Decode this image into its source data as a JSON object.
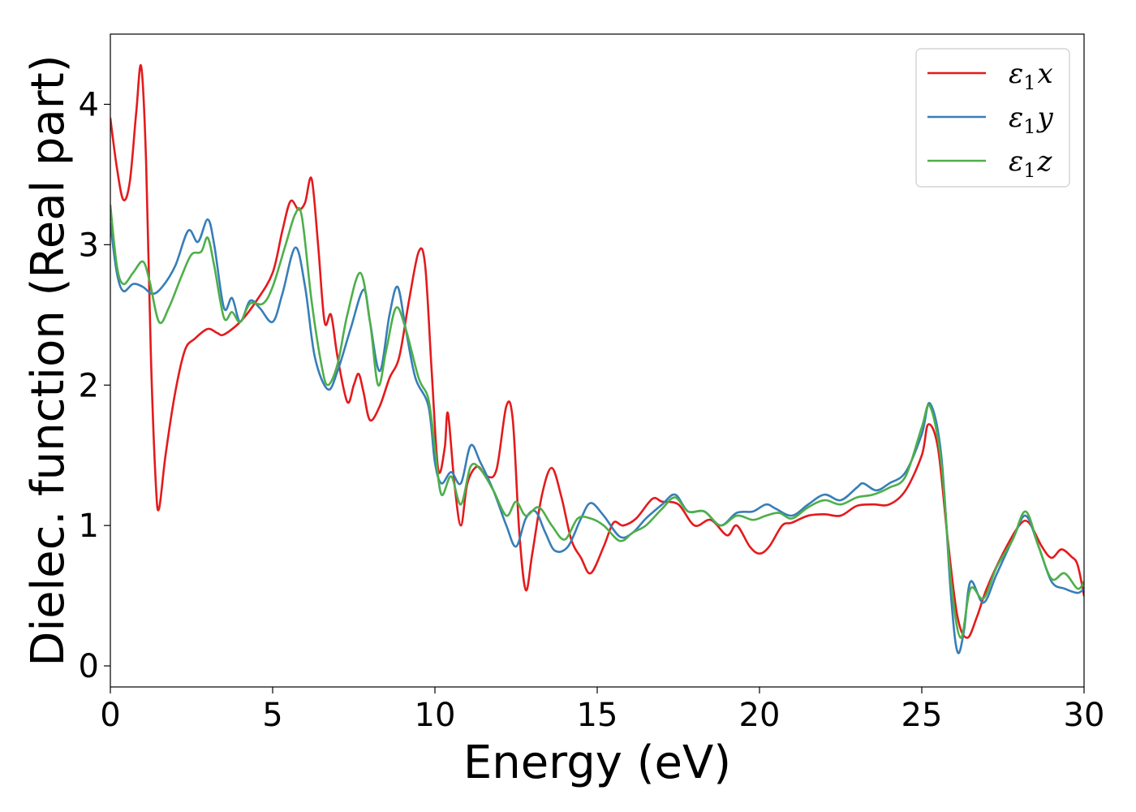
{
  "chart_data": {
    "type": "line",
    "xlabel": "Energy (eV)",
    "ylabel": "Dielec. function (Real part)",
    "xlim": [
      0,
      30
    ],
    "ylim": [
      -0.15,
      4.5
    ],
    "xticks": [
      0,
      5,
      10,
      15,
      20,
      25,
      30
    ],
    "yticks": [
      0,
      1,
      2,
      3,
      4
    ],
    "legend_position": "top-right",
    "grid": false,
    "series": [
      {
        "name": "ε₁x",
        "legend_main": "ε",
        "legend_sub": "1",
        "legend_suffix": "x",
        "color": "#e41a1c",
        "points": [
          [
            0,
            3.9
          ],
          [
            0.2,
            3.55
          ],
          [
            0.4,
            3.32
          ],
          [
            0.6,
            3.45
          ],
          [
            0.8,
            3.95
          ],
          [
            0.95,
            4.27
          ],
          [
            1.1,
            3.6
          ],
          [
            1.25,
            2.2
          ],
          [
            1.4,
            1.3
          ],
          [
            1.5,
            1.12
          ],
          [
            1.7,
            1.5
          ],
          [
            2.0,
            1.95
          ],
          [
            2.3,
            2.25
          ],
          [
            2.6,
            2.33
          ],
          [
            3.0,
            2.4
          ],
          [
            3.3,
            2.37
          ],
          [
            3.5,
            2.36
          ],
          [
            4.0,
            2.45
          ],
          [
            4.5,
            2.6
          ],
          [
            5.0,
            2.8
          ],
          [
            5.3,
            3.1
          ],
          [
            5.55,
            3.31
          ],
          [
            5.8,
            3.25
          ],
          [
            6.0,
            3.3
          ],
          [
            6.2,
            3.47
          ],
          [
            6.4,
            3.0
          ],
          [
            6.6,
            2.45
          ],
          [
            6.8,
            2.5
          ],
          [
            7.0,
            2.2
          ],
          [
            7.3,
            1.88
          ],
          [
            7.5,
            2.0
          ],
          [
            7.65,
            2.08
          ],
          [
            7.8,
            1.95
          ],
          [
            8.0,
            1.75
          ],
          [
            8.3,
            1.85
          ],
          [
            8.6,
            2.05
          ],
          [
            8.9,
            2.2
          ],
          [
            9.2,
            2.6
          ],
          [
            9.5,
            2.95
          ],
          [
            9.7,
            2.85
          ],
          [
            9.9,
            2.1
          ],
          [
            10.1,
            1.4
          ],
          [
            10.3,
            1.55
          ],
          [
            10.4,
            1.8
          ],
          [
            10.6,
            1.3
          ],
          [
            10.8,
            1.0
          ],
          [
            11.0,
            1.3
          ],
          [
            11.3,
            1.42
          ],
          [
            11.6,
            1.35
          ],
          [
            11.9,
            1.4
          ],
          [
            12.2,
            1.85
          ],
          [
            12.4,
            1.75
          ],
          [
            12.6,
            0.95
          ],
          [
            12.8,
            0.54
          ],
          [
            13.0,
            0.8
          ],
          [
            13.3,
            1.22
          ],
          [
            13.6,
            1.41
          ],
          [
            13.9,
            1.2
          ],
          [
            14.2,
            0.9
          ],
          [
            14.5,
            0.77
          ],
          [
            14.8,
            0.66
          ],
          [
            15.2,
            0.85
          ],
          [
            15.5,
            1.02
          ],
          [
            15.8,
            1.0
          ],
          [
            16.2,
            1.05
          ],
          [
            16.7,
            1.19
          ],
          [
            17.0,
            1.17
          ],
          [
            17.5,
            1.15
          ],
          [
            18.0,
            1.0
          ],
          [
            18.5,
            1.04
          ],
          [
            19.0,
            0.93
          ],
          [
            19.3,
            1.0
          ],
          [
            19.7,
            0.85
          ],
          [
            20.0,
            0.8
          ],
          [
            20.3,
            0.85
          ],
          [
            20.7,
            1.0
          ],
          [
            21.0,
            1.02
          ],
          [
            21.5,
            1.07
          ],
          [
            22.0,
            1.08
          ],
          [
            22.5,
            1.07
          ],
          [
            23.0,
            1.14
          ],
          [
            23.5,
            1.15
          ],
          [
            24.0,
            1.15
          ],
          [
            24.5,
            1.25
          ],
          [
            25.0,
            1.5
          ],
          [
            25.2,
            1.72
          ],
          [
            25.5,
            1.55
          ],
          [
            25.8,
            0.9
          ],
          [
            26.1,
            0.35
          ],
          [
            26.4,
            0.2
          ],
          [
            26.7,
            0.35
          ],
          [
            27.0,
            0.55
          ],
          [
            27.5,
            0.8
          ],
          [
            28.0,
            1.0
          ],
          [
            28.3,
            1.02
          ],
          [
            28.7,
            0.85
          ],
          [
            29.0,
            0.77
          ],
          [
            29.3,
            0.83
          ],
          [
            29.6,
            0.78
          ],
          [
            29.8,
            0.72
          ],
          [
            30.0,
            0.5
          ]
        ]
      },
      {
        "name": "ε₁y",
        "legend_main": "ε",
        "legend_sub": "1",
        "legend_suffix": "y",
        "color": "#377eb8",
        "points": [
          [
            0,
            3.15
          ],
          [
            0.2,
            2.8
          ],
          [
            0.4,
            2.67
          ],
          [
            0.7,
            2.72
          ],
          [
            1.0,
            2.7
          ],
          [
            1.3,
            2.65
          ],
          [
            1.6,
            2.7
          ],
          [
            2.0,
            2.85
          ],
          [
            2.4,
            3.1
          ],
          [
            2.7,
            3.02
          ],
          [
            3.0,
            3.18
          ],
          [
            3.2,
            3.0
          ],
          [
            3.5,
            2.55
          ],
          [
            3.75,
            2.62
          ],
          [
            4.0,
            2.45
          ],
          [
            4.3,
            2.6
          ],
          [
            4.6,
            2.55
          ],
          [
            5.0,
            2.45
          ],
          [
            5.3,
            2.65
          ],
          [
            5.7,
            2.98
          ],
          [
            6.0,
            2.7
          ],
          [
            6.3,
            2.2
          ],
          [
            6.7,
            1.97
          ],
          [
            7.0,
            2.1
          ],
          [
            7.4,
            2.4
          ],
          [
            7.8,
            2.68
          ],
          [
            8.0,
            2.45
          ],
          [
            8.3,
            2.1
          ],
          [
            8.6,
            2.5
          ],
          [
            8.85,
            2.7
          ],
          [
            9.1,
            2.4
          ],
          [
            9.4,
            2.05
          ],
          [
            9.8,
            1.85
          ],
          [
            10.0,
            1.45
          ],
          [
            10.2,
            1.3
          ],
          [
            10.5,
            1.38
          ],
          [
            10.8,
            1.3
          ],
          [
            11.1,
            1.57
          ],
          [
            11.4,
            1.45
          ],
          [
            11.8,
            1.25
          ],
          [
            12.2,
            1.0
          ],
          [
            12.5,
            0.85
          ],
          [
            12.8,
            1.05
          ],
          [
            13.1,
            1.1
          ],
          [
            13.4,
            0.95
          ],
          [
            13.7,
            0.82
          ],
          [
            14.1,
            0.85
          ],
          [
            14.5,
            1.05
          ],
          [
            14.8,
            1.16
          ],
          [
            15.2,
            1.07
          ],
          [
            15.7,
            0.92
          ],
          [
            16.1,
            0.95
          ],
          [
            16.5,
            1.05
          ],
          [
            17.0,
            1.15
          ],
          [
            17.4,
            1.22
          ],
          [
            17.8,
            1.1
          ],
          [
            18.3,
            1.1
          ],
          [
            18.8,
            1.0
          ],
          [
            19.3,
            1.09
          ],
          [
            19.8,
            1.1
          ],
          [
            20.2,
            1.15
          ],
          [
            20.5,
            1.12
          ],
          [
            21.0,
            1.07
          ],
          [
            21.5,
            1.15
          ],
          [
            22.0,
            1.22
          ],
          [
            22.5,
            1.18
          ],
          [
            23.0,
            1.27
          ],
          [
            23.2,
            1.3
          ],
          [
            23.6,
            1.25
          ],
          [
            24.0,
            1.3
          ],
          [
            24.5,
            1.38
          ],
          [
            25.0,
            1.65
          ],
          [
            25.25,
            1.87
          ],
          [
            25.6,
            1.5
          ],
          [
            25.9,
            0.5
          ],
          [
            26.1,
            0.1
          ],
          [
            26.3,
            0.25
          ],
          [
            26.5,
            0.6
          ],
          [
            26.9,
            0.45
          ],
          [
            27.3,
            0.65
          ],
          [
            27.8,
            0.9
          ],
          [
            28.2,
            1.07
          ],
          [
            28.6,
            0.85
          ],
          [
            29.0,
            0.6
          ],
          [
            29.4,
            0.55
          ],
          [
            29.8,
            0.52
          ],
          [
            30.0,
            0.55
          ]
        ]
      },
      {
        "name": "ε₁z",
        "legend_main": "ε",
        "legend_sub": "1",
        "legend_suffix": "z",
        "color": "#4daf4a",
        "points": [
          [
            0,
            3.28
          ],
          [
            0.2,
            2.85
          ],
          [
            0.4,
            2.72
          ],
          [
            0.7,
            2.8
          ],
          [
            1.0,
            2.88
          ],
          [
            1.2,
            2.75
          ],
          [
            1.5,
            2.45
          ],
          [
            1.8,
            2.55
          ],
          [
            2.2,
            2.78
          ],
          [
            2.5,
            2.93
          ],
          [
            2.8,
            2.95
          ],
          [
            3.0,
            3.05
          ],
          [
            3.2,
            2.85
          ],
          [
            3.5,
            2.48
          ],
          [
            3.75,
            2.52
          ],
          [
            4.0,
            2.45
          ],
          [
            4.3,
            2.58
          ],
          [
            4.7,
            2.58
          ],
          [
            5.0,
            2.7
          ],
          [
            5.4,
            3.0
          ],
          [
            5.7,
            3.22
          ],
          [
            5.9,
            3.2
          ],
          [
            6.2,
            2.6
          ],
          [
            6.5,
            2.15
          ],
          [
            6.7,
            2.0
          ],
          [
            7.0,
            2.15
          ],
          [
            7.3,
            2.5
          ],
          [
            7.7,
            2.8
          ],
          [
            8.0,
            2.45
          ],
          [
            8.25,
            2.0
          ],
          [
            8.5,
            2.25
          ],
          [
            8.8,
            2.55
          ],
          [
            9.1,
            2.4
          ],
          [
            9.5,
            2.05
          ],
          [
            9.8,
            1.9
          ],
          [
            10.0,
            1.55
          ],
          [
            10.2,
            1.22
          ],
          [
            10.5,
            1.35
          ],
          [
            10.8,
            1.15
          ],
          [
            11.1,
            1.42
          ],
          [
            11.4,
            1.4
          ],
          [
            11.8,
            1.25
          ],
          [
            12.2,
            1.07
          ],
          [
            12.5,
            1.17
          ],
          [
            12.8,
            1.07
          ],
          [
            13.2,
            1.13
          ],
          [
            13.6,
            1.0
          ],
          [
            14.0,
            0.9
          ],
          [
            14.4,
            1.05
          ],
          [
            14.8,
            1.05
          ],
          [
            15.2,
            1.0
          ],
          [
            15.7,
            0.89
          ],
          [
            16.1,
            0.95
          ],
          [
            16.5,
            1.0
          ],
          [
            17.0,
            1.12
          ],
          [
            17.4,
            1.2
          ],
          [
            17.8,
            1.1
          ],
          [
            18.3,
            1.1
          ],
          [
            18.8,
            1.0
          ],
          [
            19.3,
            1.07
          ],
          [
            19.8,
            1.04
          ],
          [
            20.2,
            1.07
          ],
          [
            20.6,
            1.09
          ],
          [
            21.0,
            1.05
          ],
          [
            21.5,
            1.13
          ],
          [
            22.0,
            1.18
          ],
          [
            22.5,
            1.15
          ],
          [
            23.0,
            1.2
          ],
          [
            23.5,
            1.22
          ],
          [
            24.0,
            1.27
          ],
          [
            24.5,
            1.35
          ],
          [
            25.0,
            1.7
          ],
          [
            25.25,
            1.85
          ],
          [
            25.6,
            1.45
          ],
          [
            25.9,
            0.6
          ],
          [
            26.2,
            0.2
          ],
          [
            26.5,
            0.55
          ],
          [
            26.9,
            0.48
          ],
          [
            27.3,
            0.7
          ],
          [
            27.8,
            0.9
          ],
          [
            28.2,
            1.1
          ],
          [
            28.6,
            0.85
          ],
          [
            29.0,
            0.62
          ],
          [
            29.4,
            0.66
          ],
          [
            29.8,
            0.55
          ],
          [
            30.0,
            0.6
          ]
        ]
      }
    ]
  }
}
